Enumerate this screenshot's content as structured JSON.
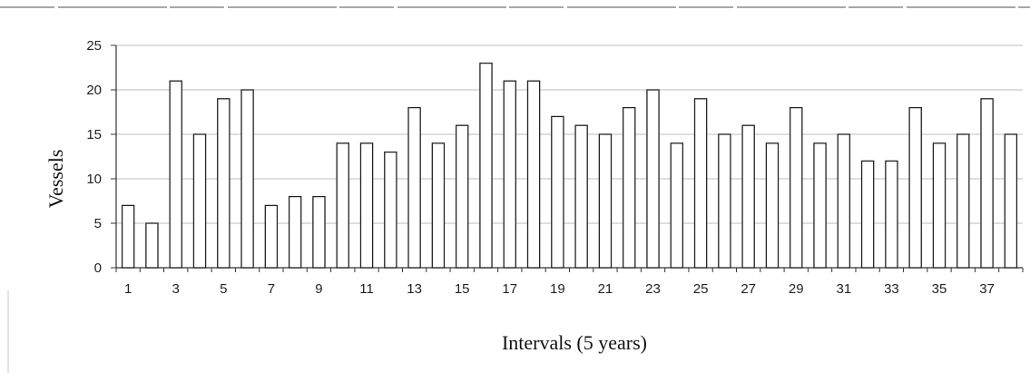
{
  "chart_data": {
    "type": "bar",
    "xlabel": "Intervals (5 years)",
    "ylabel": "Vessels",
    "ylim": [
      0,
      25
    ],
    "yticks": [
      0,
      5,
      10,
      15,
      20,
      25
    ],
    "grid": true,
    "categories": [
      "1",
      "2",
      "3",
      "4",
      "5",
      "6",
      "7",
      "8",
      "9",
      "10",
      "11",
      "12",
      "13",
      "14",
      "15",
      "16",
      "17",
      "18",
      "19",
      "20",
      "21",
      "22",
      "23",
      "24",
      "25",
      "26",
      "27",
      "28",
      "29",
      "30",
      "31",
      "32",
      "33",
      "34",
      "35",
      "36",
      "37",
      "38"
    ],
    "x_tick_labels": [
      "1",
      "",
      "3",
      "",
      "5",
      "",
      "7",
      "",
      "9",
      "",
      "11",
      "",
      "13",
      "",
      "15",
      "",
      "17",
      "",
      "19",
      "",
      "21",
      "",
      "23",
      "",
      "25",
      "",
      "27",
      "",
      "29",
      "",
      "31",
      "",
      "33",
      "",
      "35",
      "",
      "37",
      ""
    ],
    "values": [
      7,
      5,
      21,
      15,
      19,
      20,
      7,
      8,
      8,
      14,
      14,
      13,
      18,
      14,
      16,
      23,
      21,
      21,
      17,
      16,
      15,
      18,
      20,
      14,
      19,
      15,
      16,
      14,
      18,
      14,
      15,
      12,
      12,
      18,
      14,
      15,
      19,
      15
    ]
  }
}
